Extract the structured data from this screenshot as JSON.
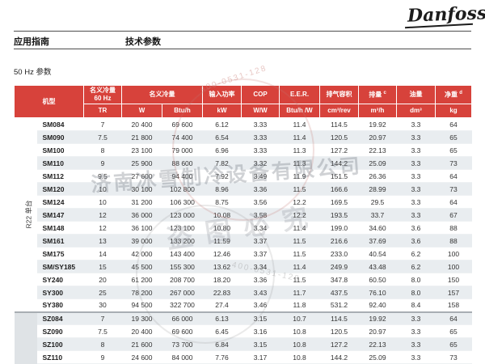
{
  "brand": {
    "logo_text": "Danfoss"
  },
  "page_header": {
    "left_label": "应用指南",
    "center_label": "技术参数"
  },
  "section_title": "50 Hz 参数",
  "colors": {
    "header_red": "#d7423b",
    "row_alt": "#e9edf0",
    "group_gray": "#dfe3e6"
  },
  "table": {
    "headers": {
      "model": "机型",
      "cooling_60hz_l1": "名义冷量",
      "cooling_60hz_l2": "60 Hz",
      "cooling": "名义冷量",
      "input_power": "输入功率",
      "cop": "COP",
      "eer": "E.E.R.",
      "swept_volume": "排气容积",
      "displacement": "排量",
      "displacement_note": "c",
      "oil_charge": "油量",
      "net_weight": "净重",
      "net_weight_note": "d"
    },
    "units": [
      "TR",
      "W",
      "Btu/h",
      "kW",
      "W/W",
      "Btu/h /W",
      "cm³/rev",
      "m³/h",
      "dm³",
      "kg"
    ],
    "groups": [
      {
        "label": "R22 单台",
        "rows": 15
      },
      {
        "label": "",
        "rows": 4
      }
    ],
    "rows": [
      [
        "SM084",
        "7",
        "20 400",
        "69 600",
        "6.12",
        "3.33",
        "11.4",
        "114.5",
        "19.92",
        "3.3",
        "64"
      ],
      [
        "SM090",
        "7.5",
        "21 800",
        "74 400",
        "6.54",
        "3.33",
        "11.4",
        "120.5",
        "20.97",
        "3.3",
        "65"
      ],
      [
        "SM100",
        "8",
        "23 100",
        "79 000",
        "6.96",
        "3.33",
        "11.3",
        "127.2",
        "22.13",
        "3.3",
        "65"
      ],
      [
        "SM110",
        "9",
        "25 900",
        "88 600",
        "7.82",
        "3.32",
        "11.3",
        "144.2",
        "25.09",
        "3.3",
        "73"
      ],
      [
        "SM112",
        "9.5",
        "27 600",
        "94 400",
        "7.92",
        "3.49",
        "11.9",
        "151.5",
        "26.36",
        "3.3",
        "64"
      ],
      [
        "SM120",
        "10",
        "30 100",
        "102 800",
        "8.96",
        "3.36",
        "11.5",
        "166.6",
        "28.99",
        "3.3",
        "73"
      ],
      [
        "SM124",
        "10",
        "31 200",
        "106 300",
        "8.75",
        "3.56",
        "12.2",
        "169.5",
        "29.5",
        "3.3",
        "64"
      ],
      [
        "SM147",
        "12",
        "36 000",
        "123 000",
        "10.08",
        "3.58",
        "12.2",
        "193.5",
        "33.7",
        "3.3",
        "67"
      ],
      [
        "SM148",
        "12",
        "36 100",
        "123 100",
        "10.80",
        "3.34",
        "11.4",
        "199.0",
        "34.60",
        "3.6",
        "88"
      ],
      [
        "SM161",
        "13",
        "39 000",
        "133 200",
        "11.59",
        "3.37",
        "11.5",
        "216.6",
        "37.69",
        "3.6",
        "88"
      ],
      [
        "SM175",
        "14",
        "42 000",
        "143 400",
        "12.46",
        "3.37",
        "11.5",
        "233.0",
        "40.54",
        "6.2",
        "100"
      ],
      [
        "SM/SY185",
        "15",
        "45 500",
        "155 300",
        "13.62",
        "3.34",
        "11.4",
        "249.9",
        "43.48",
        "6.2",
        "100"
      ],
      [
        "SY240",
        "20",
        "61 200",
        "208 700",
        "18.20",
        "3.36",
        "11.5",
        "347.8",
        "60.50",
        "8.0",
        "150"
      ],
      [
        "SY300",
        "25",
        "78 200",
        "267 000",
        "22.83",
        "3.43",
        "11.7",
        "437.5",
        "76.10",
        "8.0",
        "157"
      ],
      [
        "SY380",
        "30",
        "94 500",
        "322 700",
        "27.4",
        "3.46",
        "11.8",
        "531.2",
        "92.40",
        "8.4",
        "158"
      ],
      [
        "SZ084",
        "7",
        "19 300",
        "66 000",
        "6.13",
        "3.15",
        "10.7",
        "114.5",
        "19.92",
        "3.3",
        "64"
      ],
      [
        "SZ090",
        "7.5",
        "20 400",
        "69 600",
        "6.45",
        "3.16",
        "10.8",
        "120.5",
        "20.97",
        "3.3",
        "65"
      ],
      [
        "SZ100",
        "8",
        "21 600",
        "73 700",
        "6.84",
        "3.15",
        "10.8",
        "127.2",
        "22.13",
        "3.3",
        "65"
      ],
      [
        "SZ110",
        "9",
        "24 600",
        "84 000",
        "7.76",
        "3.17",
        "10.8",
        "144.2",
        "25.09",
        "3.3",
        "73"
      ]
    ]
  },
  "watermark": {
    "company": "济南冰雪制冷设备有限公司",
    "notice": "盗图必究",
    "phone": "400-0531-128"
  }
}
